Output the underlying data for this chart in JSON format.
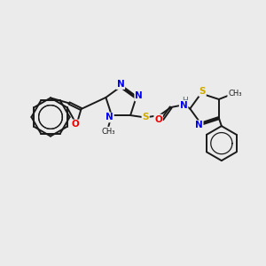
{
  "background_color": "#ebebeb",
  "bond_color": "#1a1a1a",
  "atom_colors": {
    "N": "#0000ee",
    "O": "#ee0000",
    "S": "#ccaa00",
    "H": "#336677",
    "C": "#1a1a1a"
  },
  "bond_lw": 1.4,
  "figsize": [
    3.0,
    3.0
  ],
  "dpi": 100
}
